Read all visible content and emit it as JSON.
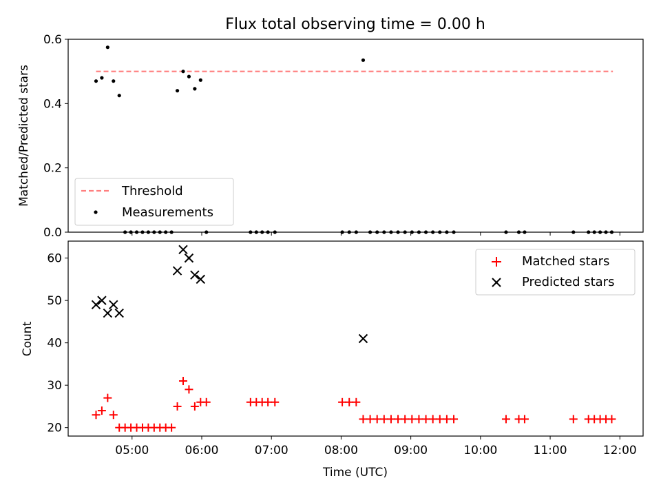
{
  "figure_title": "Flux total observing time = 0.00 h",
  "chart_data": [
    {
      "type": "scatter",
      "ylabel": "Matched/Predicted stars",
      "xlim": [
        "04:05",
        "12:20"
      ],
      "ylim": [
        0,
        0.6
      ],
      "yticks": [
        "0.0",
        "0.2",
        "0.4",
        "0.6"
      ],
      "threshold": {
        "name": "Threshold",
        "value": 0.5,
        "x_range": [
          "04:29",
          "11:54"
        ],
        "color": "#ff7f7f",
        "style": "dashed"
      },
      "legend": {
        "position": "lower-left",
        "entries": [
          "Threshold",
          "Measurements"
        ]
      },
      "series": [
        {
          "name": "Measurements",
          "color": "#000000",
          "marker": "dot",
          "points": [
            [
              "04:29",
              0.47
            ],
            [
              "04:34",
              0.48
            ],
            [
              "04:39",
              0.575
            ],
            [
              "04:44",
              0.47
            ],
            [
              "04:49",
              0.425
            ],
            [
              "04:54",
              0.0
            ],
            [
              "04:59",
              0.0
            ],
            [
              "05:04",
              0.0
            ],
            [
              "05:09",
              0.0
            ],
            [
              "05:14",
              0.0
            ],
            [
              "05:19",
              0.0
            ],
            [
              "05:24",
              0.0
            ],
            [
              "05:29",
              0.0
            ],
            [
              "05:34",
              0.0
            ],
            [
              "05:39",
              0.44
            ],
            [
              "05:44",
              0.5
            ],
            [
              "05:49",
              0.484
            ],
            [
              "05:54",
              0.446
            ],
            [
              "05:59",
              0.473
            ],
            [
              "06:04",
              0.0
            ],
            [
              "06:42",
              0.0
            ],
            [
              "06:47",
              0.0
            ],
            [
              "06:52",
              0.0
            ],
            [
              "06:57",
              0.0
            ],
            [
              "07:03",
              0.0
            ],
            [
              "08:01",
              0.0
            ],
            [
              "08:07",
              0.0
            ],
            [
              "08:13",
              0.0
            ],
            [
              "08:19",
              0.535
            ],
            [
              "08:25",
              0.0
            ],
            [
              "08:31",
              0.0
            ],
            [
              "08:37",
              0.0
            ],
            [
              "08:43",
              0.0
            ],
            [
              "08:49",
              0.0
            ],
            [
              "08:55",
              0.0
            ],
            [
              "09:01",
              0.0
            ],
            [
              "09:07",
              0.0
            ],
            [
              "09:13",
              0.0
            ],
            [
              "09:19",
              0.0
            ],
            [
              "09:25",
              0.0
            ],
            [
              "09:31",
              0.0
            ],
            [
              "09:37",
              0.0
            ],
            [
              "10:22",
              0.0
            ],
            [
              "10:33",
              0.0
            ],
            [
              "10:38",
              0.0
            ],
            [
              "11:20",
              0.0
            ],
            [
              "11:33",
              0.0
            ],
            [
              "11:38",
              0.0
            ],
            [
              "11:43",
              0.0
            ],
            [
              "11:48",
              0.0
            ],
            [
              "11:53",
              0.0
            ]
          ]
        }
      ]
    },
    {
      "type": "scatter",
      "xlabel": "Time (UTC)",
      "ylabel": "Count",
      "xlim": [
        "04:05",
        "12:20"
      ],
      "ylim": [
        18,
        64
      ],
      "yticks": [
        "20",
        "30",
        "40",
        "50",
        "60"
      ],
      "xticks": [
        "05:00",
        "06:00",
        "07:00",
        "08:00",
        "09:00",
        "10:00",
        "11:00",
        "12:00"
      ],
      "legend": {
        "position": "top-right",
        "entries": [
          "Matched stars",
          "Predicted stars"
        ]
      },
      "series": [
        {
          "name": "Matched stars",
          "color": "#ff0000",
          "marker": "plus",
          "points": [
            [
              "04:29",
              23
            ],
            [
              "04:34",
              24
            ],
            [
              "04:39",
              27
            ],
            [
              "04:44",
              23
            ],
            [
              "04:49",
              20
            ],
            [
              "04:54",
              20
            ],
            [
              "04:59",
              20
            ],
            [
              "05:04",
              20
            ],
            [
              "05:09",
              20
            ],
            [
              "05:14",
              20
            ],
            [
              "05:19",
              20
            ],
            [
              "05:24",
              20
            ],
            [
              "05:29",
              20
            ],
            [
              "05:34",
              20
            ],
            [
              "05:39",
              25
            ],
            [
              "05:44",
              31
            ],
            [
              "05:49",
              29
            ],
            [
              "05:54",
              25
            ],
            [
              "05:59",
              26
            ],
            [
              "06:04",
              26
            ],
            [
              "06:42",
              26
            ],
            [
              "06:47",
              26
            ],
            [
              "06:52",
              26
            ],
            [
              "06:57",
              26
            ],
            [
              "07:03",
              26
            ],
            [
              "08:01",
              26
            ],
            [
              "08:07",
              26
            ],
            [
              "08:13",
              26
            ],
            [
              "08:19",
              22
            ],
            [
              "08:25",
              22
            ],
            [
              "08:31",
              22
            ],
            [
              "08:37",
              22
            ],
            [
              "08:43",
              22
            ],
            [
              "08:49",
              22
            ],
            [
              "08:55",
              22
            ],
            [
              "09:01",
              22
            ],
            [
              "09:07",
              22
            ],
            [
              "09:13",
              22
            ],
            [
              "09:19",
              22
            ],
            [
              "09:25",
              22
            ],
            [
              "09:31",
              22
            ],
            [
              "09:37",
              22
            ],
            [
              "10:22",
              22
            ],
            [
              "10:33",
              22
            ],
            [
              "10:38",
              22
            ],
            [
              "11:20",
              22
            ],
            [
              "11:33",
              22
            ],
            [
              "11:38",
              22
            ],
            [
              "11:43",
              22
            ],
            [
              "11:48",
              22
            ],
            [
              "11:53",
              22
            ]
          ]
        },
        {
          "name": "Predicted stars",
          "color": "#000000",
          "marker": "x",
          "points": [
            [
              "04:29",
              49
            ],
            [
              "04:34",
              50
            ],
            [
              "04:39",
              47
            ],
            [
              "04:44",
              49
            ],
            [
              "04:49",
              47
            ],
            [
              "05:39",
              57
            ],
            [
              "05:44",
              62
            ],
            [
              "05:49",
              60
            ],
            [
              "05:54",
              56
            ],
            [
              "05:59",
              55
            ],
            [
              "08:19",
              41
            ]
          ]
        }
      ]
    }
  ]
}
